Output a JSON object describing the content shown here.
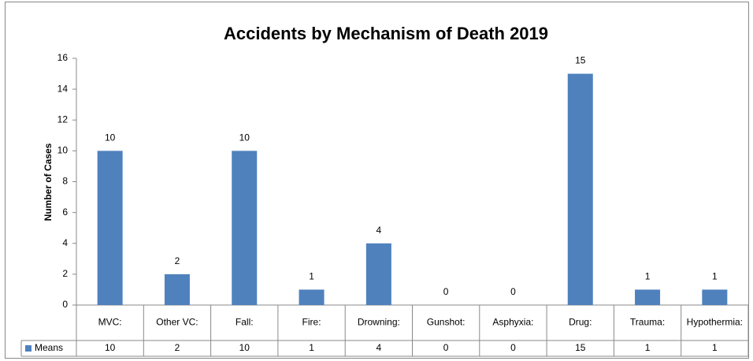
{
  "chart_data": {
    "type": "bar",
    "title": "Accidents by Mechanism of Death 2019",
    "y_label": "Number of Cases",
    "categories": [
      "MVC:",
      "Other VC:",
      "Fall:",
      "Fire:",
      "Drowning:",
      "Gunshot:",
      "Asphyxia:",
      "Drug:",
      "Trauma:",
      "Hypothermia:"
    ],
    "series": [
      {
        "name": "Means",
        "color": "#4f81bd",
        "values": [
          10,
          2,
          10,
          1,
          4,
          0,
          0,
          15,
          1,
          1
        ]
      }
    ],
    "ylim": [
      0,
      16
    ],
    "yticks": [
      0,
      2,
      4,
      6,
      8,
      10,
      12,
      14,
      16
    ],
    "grid": false,
    "data_table": true
  }
}
